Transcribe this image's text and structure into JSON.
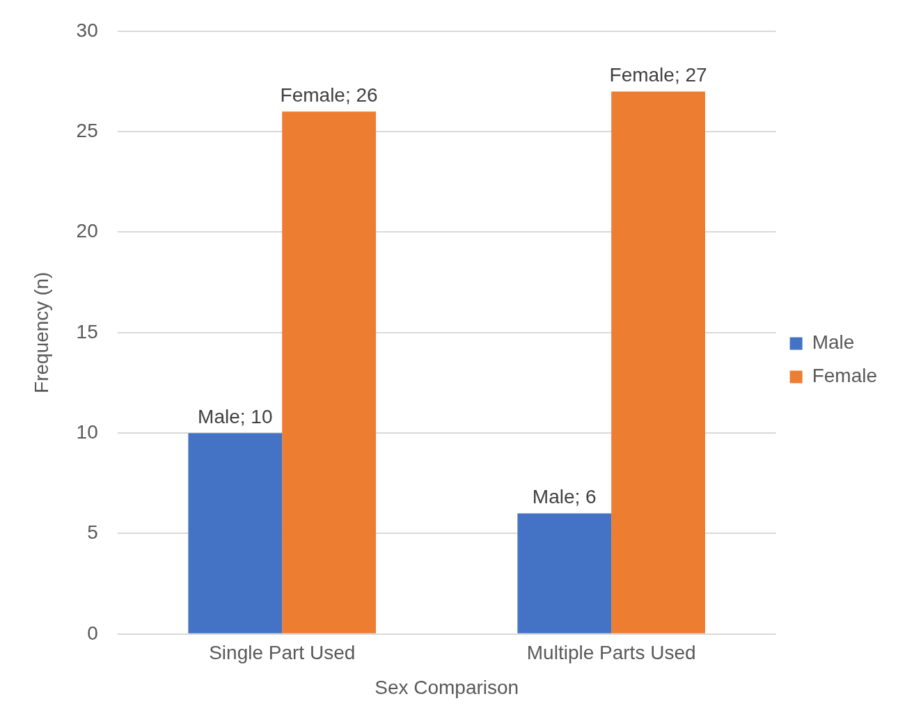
{
  "chart_data": {
    "type": "bar",
    "xlabel": "Sex Comparison",
    "ylabel": "Frequency (n)",
    "categories": [
      "Single Part Used",
      "Multiple Parts Used"
    ],
    "series": [
      {
        "name": "Male",
        "color": "#4472c4",
        "values": [
          10,
          6
        ],
        "value_labels": [
          "Male; 10",
          "Male; 6"
        ]
      },
      {
        "name": "Female",
        "color": "#ed7d31",
        "values": [
          26,
          27
        ],
        "value_labels": [
          "Female; 26",
          "Female; 27"
        ]
      }
    ],
    "ylim": [
      0,
      30
    ],
    "yticks": [
      0,
      5,
      10,
      15,
      20,
      25,
      30
    ],
    "grid": "y",
    "legend": "right"
  }
}
